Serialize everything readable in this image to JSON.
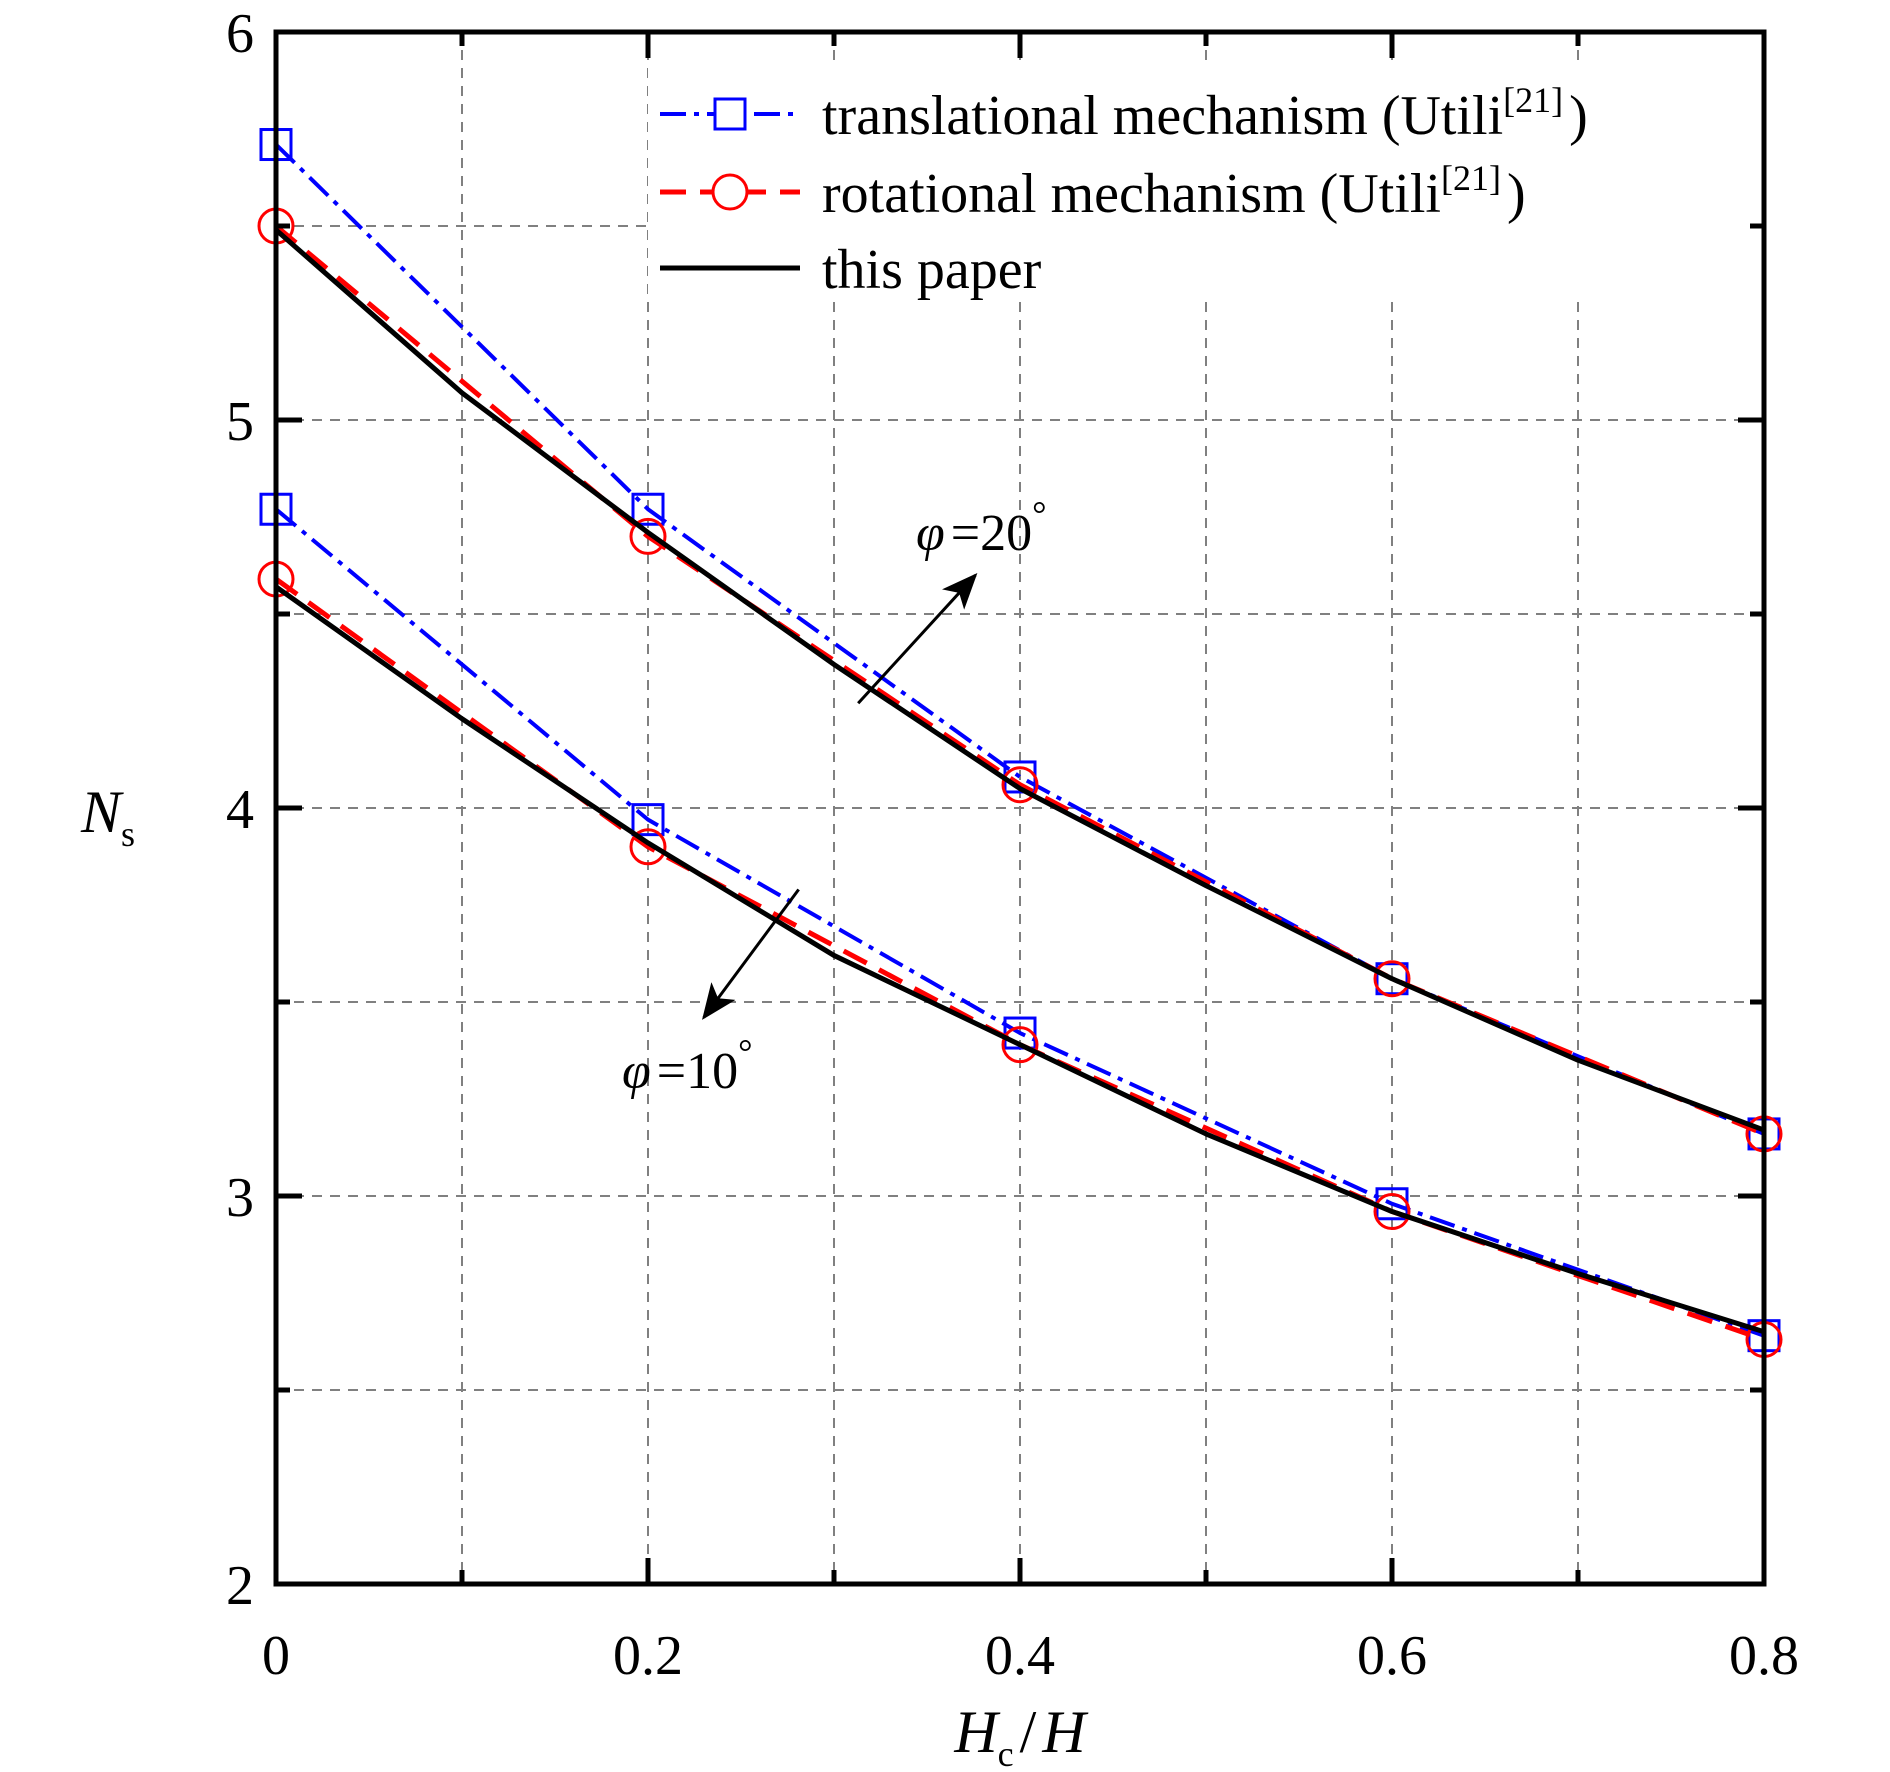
{
  "chart_data": {
    "type": "line",
    "xlabel": {
      "main": "H",
      "sub": "c",
      "rest": "/",
      "main2": "H"
    },
    "ylabel": {
      "main": "N",
      "sub": "s"
    },
    "xlim": [
      0,
      0.8
    ],
    "ylim": [
      2,
      6
    ],
    "xticks": [
      "0",
      "0.2",
      "0.4",
      "0.6",
      "0.8"
    ],
    "yticks": [
      "2",
      "3",
      "4",
      "5",
      "6"
    ],
    "grid": true,
    "legend": {
      "position": "top-right",
      "entries": [
        {
          "key": "translational",
          "text": "translational mechanism (Utili",
          "ref": "[21]",
          "close": ")"
        },
        {
          "key": "rotational",
          "text": "rotational mechanism (Utili",
          "ref": "[21]",
          "close": ")"
        },
        {
          "key": "this_paper",
          "text": "this paper",
          "ref": "",
          "close": ""
        }
      ]
    },
    "colors": {
      "translational": "#0000ff",
      "rotational": "#ff0000",
      "this_paper": "#000000"
    },
    "series": [
      {
        "key": "translational",
        "group": "20",
        "x": [
          0,
          0.2,
          0.4,
          0.6,
          0.8
        ],
        "y": [
          5.71,
          4.77,
          4.08,
          3.56,
          3.16
        ]
      },
      {
        "key": "rotational",
        "group": "20",
        "x": [
          0,
          0.2,
          0.4,
          0.6,
          0.8
        ],
        "y": [
          5.5,
          4.7,
          4.06,
          3.56,
          3.16
        ]
      },
      {
        "key": "this_paper",
        "group": "20",
        "x": [
          0,
          0.1,
          0.2,
          0.3,
          0.4,
          0.5,
          0.6,
          0.7,
          0.8
        ],
        "y": [
          5.49,
          5.07,
          4.71,
          4.37,
          4.05,
          3.8,
          3.56,
          3.35,
          3.17
        ]
      },
      {
        "key": "translational",
        "group": "10",
        "x": [
          0,
          0.2,
          0.4,
          0.6,
          0.8
        ],
        "y": [
          4.77,
          3.97,
          3.42,
          2.98,
          2.64
        ]
      },
      {
        "key": "rotational",
        "group": "10",
        "x": [
          0,
          0.2,
          0.4,
          0.6,
          0.8
        ],
        "y": [
          4.59,
          3.9,
          3.39,
          2.96,
          2.63
        ]
      },
      {
        "key": "this_paper",
        "group": "10",
        "x": [
          0,
          0.1,
          0.2,
          0.3,
          0.4,
          0.5,
          0.6,
          0.7,
          0.8
        ],
        "y": [
          4.57,
          4.23,
          3.91,
          3.62,
          3.39,
          3.16,
          2.96,
          2.8,
          2.65
        ]
      }
    ],
    "annotations": [
      {
        "key": "phi20",
        "symbol": "φ",
        "text": "=20",
        "unit": "°",
        "arrow_from": [
          0.313,
          4.27
        ],
        "arrow_to": [
          0.376,
          4.6
        ]
      },
      {
        "key": "phi10",
        "symbol": "φ",
        "text": "=10",
        "unit": "°",
        "arrow_from": [
          0.281,
          3.79
        ],
        "arrow_to": [
          0.23,
          3.46
        ]
      }
    ]
  }
}
